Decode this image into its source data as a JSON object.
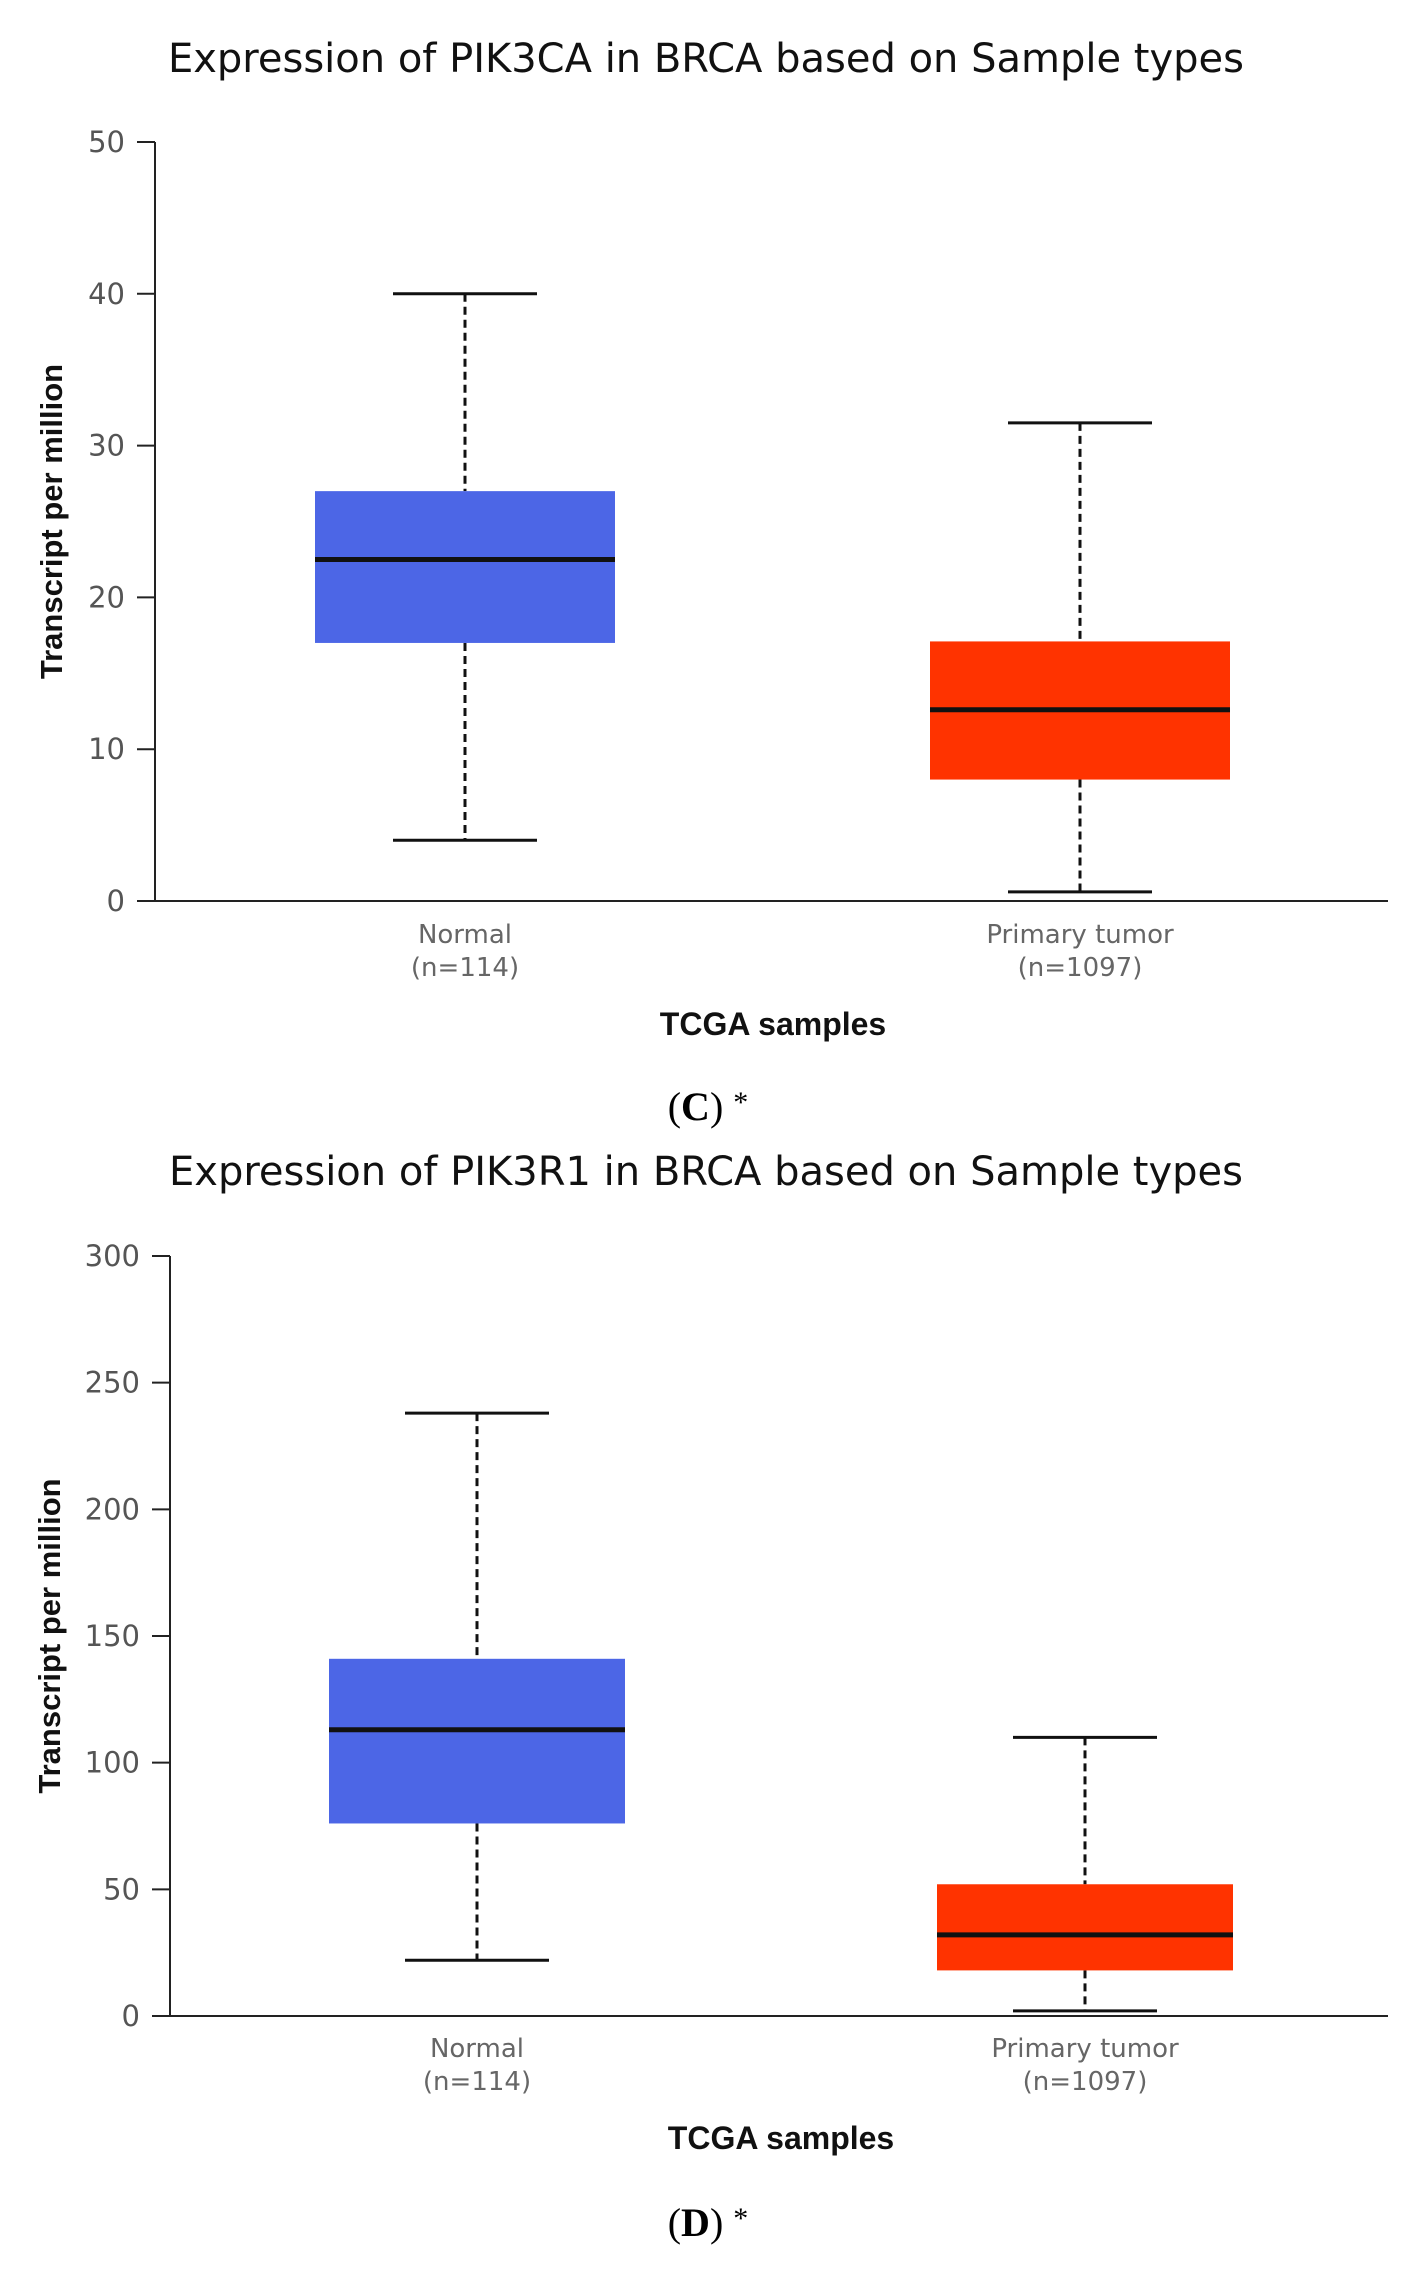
{
  "chart_data": [
    {
      "type": "box",
      "title": "Expression of PIK3CA in BRCA based on Sample types",
      "xlabel": "TCGA samples",
      "ylabel": "Transcript per million",
      "ylim": [
        0,
        50
      ],
      "yticks": [
        0,
        10,
        20,
        30,
        40,
        50
      ],
      "caption": {
        "letter": "C",
        "open": "(",
        "close": ")",
        "mark": "*"
      },
      "series": [
        {
          "name": "Normal",
          "n_label": "(n=114)",
          "color": "#4c66e6",
          "whisker_low": 4,
          "q1": 17,
          "median": 22.5,
          "q3": 27,
          "whisker_high": 40
        },
        {
          "name": "Primary tumor",
          "n_label": "(n=1097)",
          "color": "#ff3300",
          "whisker_low": 0.6,
          "q1": 8,
          "median": 12.6,
          "q3": 17.1,
          "whisker_high": 31.5
        }
      ]
    },
    {
      "type": "box",
      "title": "Expression of PIK3R1 in BRCA based on Sample types",
      "xlabel": "TCGA samples",
      "ylabel": "Transcript per million",
      "ylim": [
        0,
        300
      ],
      "yticks": [
        0,
        50,
        100,
        150,
        200,
        250,
        300
      ],
      "caption": {
        "letter": "D",
        "open": "(",
        "close": ")",
        "mark": "*"
      },
      "series": [
        {
          "name": "Normal",
          "n_label": "(n=114)",
          "color": "#4c66e6",
          "whisker_low": 22,
          "q1": 76,
          "median": 113,
          "q3": 141,
          "whisker_high": 238
        },
        {
          "name": "Primary tumor",
          "n_label": "(n=1097)",
          "color": "#ff3300",
          "whisker_low": 2,
          "q1": 18,
          "median": 32,
          "q3": 52,
          "whisker_high": 110
        }
      ]
    }
  ]
}
